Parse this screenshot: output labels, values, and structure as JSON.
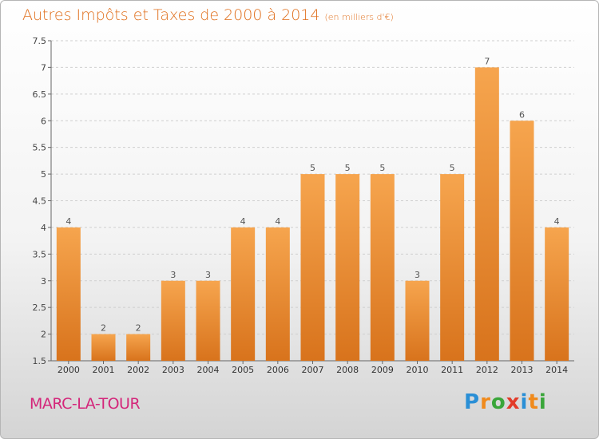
{
  "header": {
    "title": "Autres Impôts et Taxes de 2000 à 2014",
    "unit": "(en milliers d'€)"
  },
  "footer": {
    "commune": "MARC-LA-TOUR",
    "logo_letters": [
      "P",
      "r",
      "o",
      "x",
      "i",
      "t",
      "i"
    ],
    "logo_colors": [
      "#2a8fd6",
      "#f08a1c",
      "#3aa63a",
      "#e23c2a",
      "#2a8fd6",
      "#f08a1c",
      "#3aa63a"
    ]
  },
  "colors": {
    "title": "#e0701e",
    "commune": "#d4267a",
    "bar_light": "#f6a54e",
    "bar_dark": "#d8731c",
    "grid": "#cfcfcf"
  },
  "chart_data": {
    "type": "bar",
    "title": "Autres Impôts et Taxes de 2000 à 2014",
    "xlabel": "",
    "ylabel": "",
    "ylim": [
      1.5,
      7.5
    ],
    "yticks": [
      "1.5",
      "2",
      "2.5",
      "3",
      "3.5",
      "4",
      "4.5",
      "5",
      "5.5",
      "6",
      "6.5",
      "7",
      "7.5"
    ],
    "grid": true,
    "categories": [
      "2000",
      "2001",
      "2002",
      "2003",
      "2004",
      "2005",
      "2006",
      "2007",
      "2008",
      "2009",
      "2010",
      "2011",
      "2012",
      "2013",
      "2014"
    ],
    "values": [
      4,
      2,
      2,
      3,
      3,
      4,
      4,
      5,
      5,
      5,
      3,
      5,
      7,
      6,
      4
    ]
  }
}
